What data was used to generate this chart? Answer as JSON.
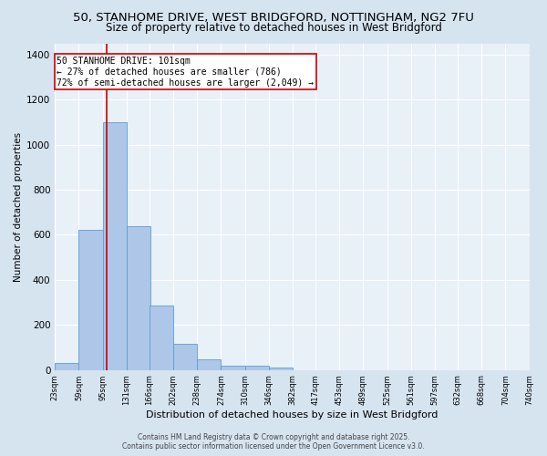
{
  "title1": "50, STANHOME DRIVE, WEST BRIDGFORD, NOTTINGHAM, NG2 7FU",
  "title2": "Size of property relative to detached houses in West Bridgford",
  "xlabel": "Distribution of detached houses by size in West Bridgford",
  "ylabel": "Number of detached properties",
  "bin_edges": [
    23,
    59,
    95,
    131,
    166,
    202,
    238,
    274,
    310,
    346,
    382,
    417,
    453,
    489,
    525,
    561,
    597,
    632,
    668,
    704,
    740
  ],
  "bar_heights": [
    30,
    620,
    1100,
    640,
    285,
    115,
    48,
    20,
    20,
    10,
    0,
    0,
    0,
    0,
    0,
    0,
    0,
    0,
    0,
    0
  ],
  "bar_color": "#aec6e8",
  "bar_edge_color": "#5a9fd4",
  "property_size": 101,
  "vline_color": "#cc0000",
  "annotation_line1": "50 STANHOME DRIVE: 101sqm",
  "annotation_line2": "← 27% of detached houses are smaller (786)",
  "annotation_line3": "72% of semi-detached houses are larger (2,049) →",
  "annotation_box_color": "#cc0000",
  "ylim": [
    0,
    1450
  ],
  "yticks": [
    0,
    200,
    400,
    600,
    800,
    1000,
    1200,
    1400
  ],
  "tick_labels": [
    "23sqm",
    "59sqm",
    "95sqm",
    "131sqm",
    "166sqm",
    "202sqm",
    "238sqm",
    "274sqm",
    "310sqm",
    "346sqm",
    "382sqm",
    "417sqm",
    "453sqm",
    "489sqm",
    "525sqm",
    "561sqm",
    "597sqm",
    "632sqm",
    "668sqm",
    "704sqm",
    "740sqm"
  ],
  "footer1": "Contains HM Land Registry data © Crown copyright and database right 2025.",
  "footer2": "Contains public sector information licensed under the Open Government Licence v3.0.",
  "bg_color": "#d6e4f0",
  "plot_bg_color": "#e8f0f8",
  "grid_color": "#ffffff",
  "title_fontsize": 9.5,
  "subtitle_fontsize": 8.5,
  "ylabel_fontsize": 7.5,
  "xlabel_fontsize": 8,
  "tick_fontsize": 6,
  "ytick_fontsize": 7.5,
  "footer_fontsize": 5.5,
  "ann_fontsize": 7
}
